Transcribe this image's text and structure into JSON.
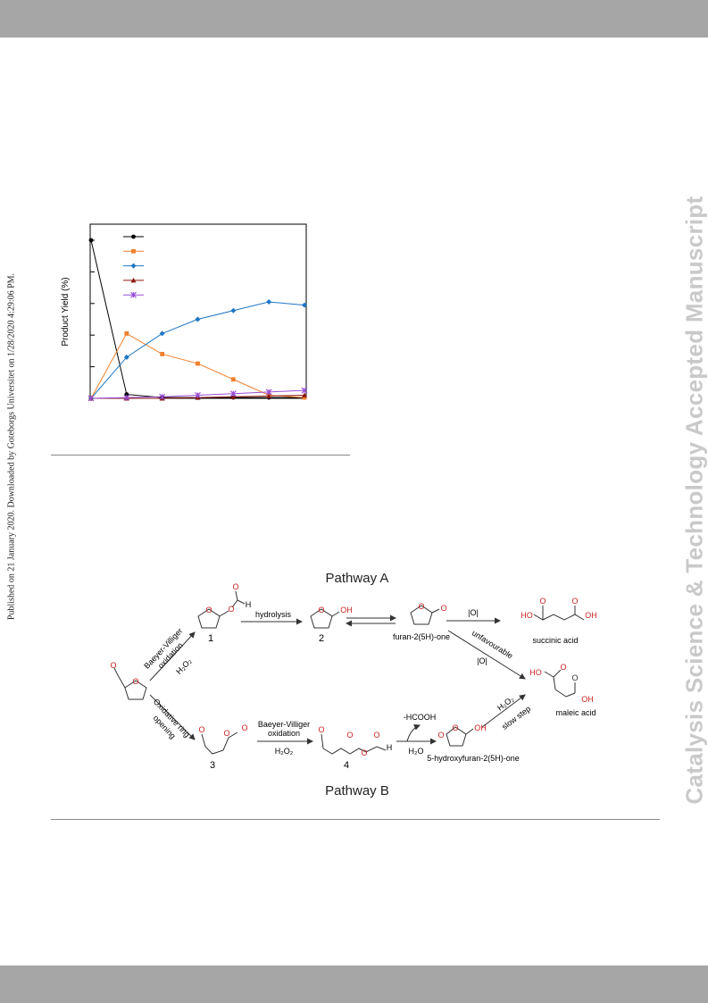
{
  "watermark": "Catalysis Science & Technology Accepted Manuscript",
  "published_line": "Published on 21 January 2020. Downloaded by Goteborgs Universitet on 1/28/2020 4:29:06 PM.",
  "chart_data": {
    "type": "line",
    "ylabel": "Product Yield (%)",
    "x": [
      0,
      1,
      2,
      3,
      4,
      5,
      6
    ],
    "ylim": [
      0,
      100
    ],
    "series": [
      {
        "marker": "circle",
        "color": "#000000",
        "values": [
          100,
          2.5,
          0.5,
          0.5,
          0.5,
          0.5,
          0.5
        ]
      },
      {
        "marker": "square",
        "color": "#f07f2e",
        "values": [
          0,
          41,
          28,
          22,
          12,
          2,
          0.5
        ]
      },
      {
        "marker": "diamond",
        "color": "#1f77c4",
        "values": [
          0,
          26,
          41,
          50,
          55.5,
          61,
          59
        ]
      },
      {
        "marker": "triangle",
        "color": "#8b1a10",
        "values": [
          0,
          0,
          0,
          0.5,
          1,
          1.5,
          2
        ]
      },
      {
        "marker": "cross",
        "color": "#9a4fd6",
        "values": [
          0,
          0.5,
          1,
          2,
          3,
          4,
          5
        ]
      }
    ]
  },
  "scheme": {
    "pathway_a": "Pathway A",
    "pathway_b": "Pathway B",
    "labels": {
      "num1": "1",
      "num2": "2",
      "num3": "3",
      "num4": "4",
      "hydrolysis": "hydrolysis",
      "bv_oxidation_a1": "Baeyer-Villiger",
      "bv_oxidation_a2": "oxidation",
      "h2o2": "H₂O₂",
      "furanone": "furan-2(5H)-one",
      "ox": "|O|",
      "succinic": "succinic acid",
      "unfavourable": "unfavourable",
      "maleic": "maleic acid",
      "oxring1": "Oxidative ring",
      "oxring2": "opening",
      "bv_b1": "Baeyer-Villiger",
      "bv_b2": "oxidation",
      "hcooh": "-HCOOH",
      "h2o": "H₂O",
      "hydroxyfuranone": "5-hydroxyfuran-2(5H)-one",
      "slowstep": "slow step",
      "atom_h": "H",
      "atom_o": "O",
      "atom_oh": "OH",
      "atom_ho": "HO"
    }
  }
}
